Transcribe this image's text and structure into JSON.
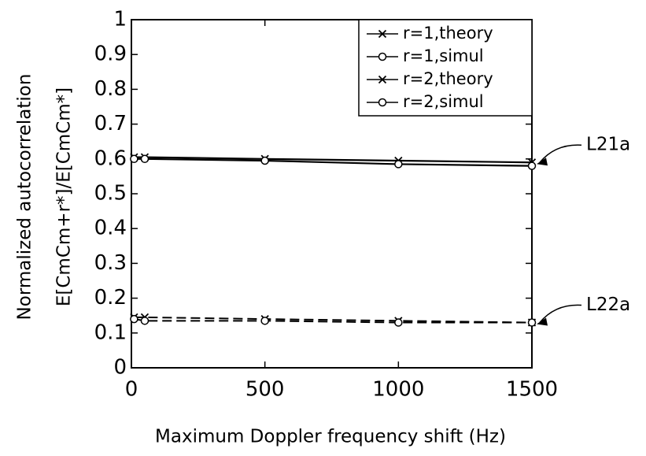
{
  "chart_data": {
    "type": "line",
    "xlabel": "Maximum Doppler frequency shift (Hz)",
    "ylabel": [
      "Normalized autocorrelation",
      "E[CmCm+r*]/E[CmCm*]"
    ],
    "x": [
      10,
      50,
      500,
      1000,
      1500
    ],
    "series": [
      {
        "name": "r=1,theory",
        "color": "#000000",
        "marker": "x",
        "dashed": false,
        "values": [
          0.605,
          0.605,
          0.6,
          0.595,
          0.59
        ]
      },
      {
        "name": "r=1,simul",
        "color": "#000000",
        "marker": "o",
        "dashed": false,
        "values": [
          0.6,
          0.6,
          0.595,
          0.585,
          0.58
        ]
      },
      {
        "name": "r=2,theory",
        "color": "#000000",
        "marker": "x",
        "dashed": true,
        "values": [
          0.145,
          0.145,
          0.14,
          0.135,
          0.13
        ]
      },
      {
        "name": "r=2,simul",
        "color": "#000000",
        "marker": "o",
        "dashed": true,
        "values": [
          0.14,
          0.135,
          0.135,
          0.13,
          0.13
        ]
      }
    ],
    "xlim": [
      0,
      1500
    ],
    "xticks": [
      0,
      500,
      1000,
      1500
    ],
    "ylim": [
      0,
      1
    ],
    "yticks": [
      0,
      0.1,
      0.2,
      0.3,
      0.4,
      0.5,
      0.6,
      0.7,
      0.8,
      0.9,
      1
    ],
    "legend": "upper right",
    "annotations": [
      {
        "text": "L21a",
        "series": 0
      },
      {
        "text": "L22a",
        "series": 2
      }
    ]
  }
}
